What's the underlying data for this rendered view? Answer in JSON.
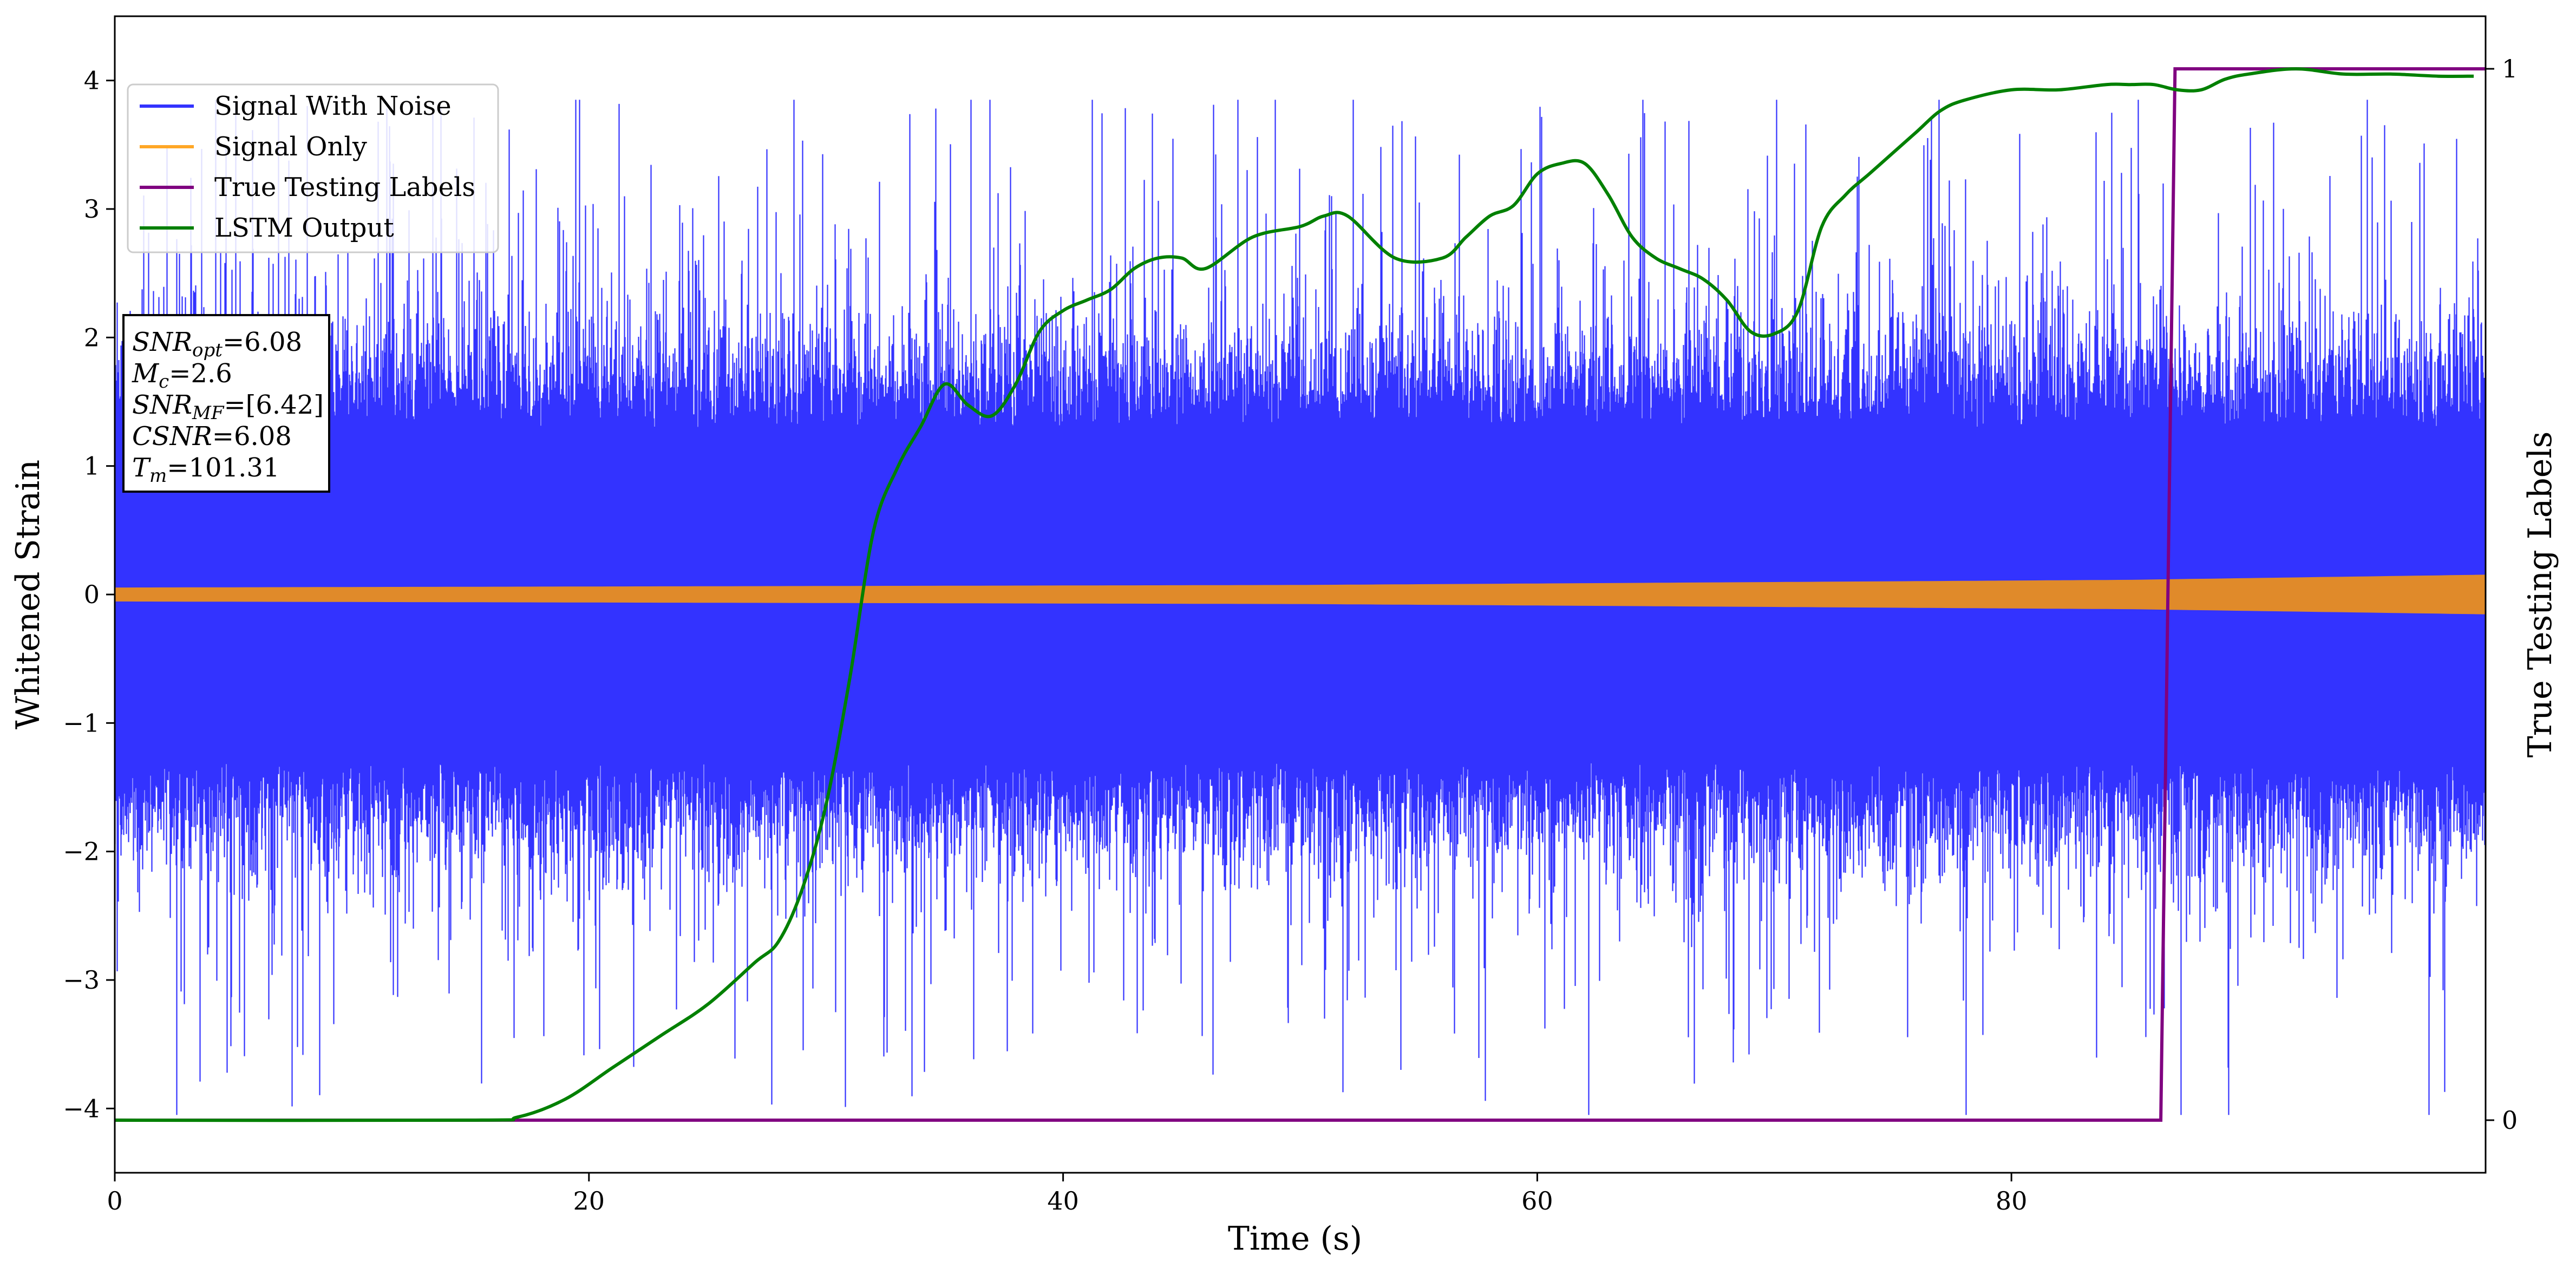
{
  "chart_data": {
    "type": "line",
    "title": "",
    "xlabel": "Time (s)",
    "ylabel": "Whitened Strain",
    "y2label": "True Testing Labels",
    "xlim": [
      0,
      100
    ],
    "ylim": [
      -4.5,
      4.5
    ],
    "y2lim": [
      -0.05,
      1.05
    ],
    "xticks": [
      0,
      20,
      40,
      60,
      80
    ],
    "xtick_labels": [
      "0",
      "20",
      "40",
      "60",
      "80"
    ],
    "yticks": [
      -4,
      -3,
      -2,
      -1,
      0,
      1,
      2,
      3,
      4
    ],
    "ytick_labels": [
      "−4",
      "−3",
      "−2",
      "−1",
      "0",
      "1",
      "2",
      "3",
      "4"
    ],
    "y2ticks": [
      0,
      1
    ],
    "y2tick_labels": [
      "0",
      "1"
    ],
    "grid": false,
    "legend_position": "top-left",
    "legend": [
      {
        "label": "Signal With Noise",
        "color": "#3333ff"
      },
      {
        "label": "Signal Only",
        "color": "#ffa726"
      },
      {
        "label": "True Testing Labels",
        "color": "#800080"
      },
      {
        "label": "LSTM Output",
        "color": "#008000"
      }
    ],
    "series": [
      {
        "name": "Signal With Noise",
        "axis": "left",
        "color": "#3333ff",
        "kind": "dense-noise",
        "core_band": [
          -1.3,
          1.3
        ],
        "typical_extremes": [
          -2.5,
          2.7
        ],
        "max_spike": 3.85,
        "min_spike": -4.05
      },
      {
        "name": "Signal Only",
        "axis": "left",
        "color": "#e08a2a",
        "kind": "chirp-envelope",
        "x": [
          0,
          50,
          85,
          100
        ],
        "amplitude": [
          0.05,
          0.07,
          0.11,
          0.15
        ]
      },
      {
        "name": "True Testing Labels",
        "axis": "right",
        "color": "#800080",
        "x": [
          0,
          86.3,
          86.9,
          100
        ],
        "y": [
          0,
          0,
          1,
          1
        ]
      },
      {
        "name": "LSTM Output",
        "axis": "right",
        "color": "#008000",
        "x": [
          0,
          15,
          17,
          19,
          21,
          23,
          25,
          27,
          28,
          29,
          30,
          31,
          32,
          33,
          34,
          35,
          36,
          37,
          38,
          39,
          40,
          41,
          42,
          43,
          44,
          45,
          46,
          48,
          50,
          51,
          52,
          54,
          56,
          57,
          58,
          59,
          60,
          61,
          62,
          63,
          64,
          65,
          66,
          67,
          68,
          69,
          70,
          71,
          72,
          73,
          74,
          75,
          76,
          77,
          78,
          80,
          82,
          84,
          85,
          86,
          87,
          88,
          89,
          90,
          92,
          94,
          96,
          98,
          99.5
        ],
        "y": [
          0.0,
          0.0,
          0.003,
          0.02,
          0.05,
          0.08,
          0.11,
          0.15,
          0.17,
          0.22,
          0.3,
          0.42,
          0.56,
          0.62,
          0.66,
          0.7,
          0.68,
          0.67,
          0.7,
          0.75,
          0.77,
          0.78,
          0.79,
          0.81,
          0.82,
          0.82,
          0.81,
          0.84,
          0.85,
          0.86,
          0.86,
          0.82,
          0.82,
          0.84,
          0.86,
          0.87,
          0.9,
          0.91,
          0.91,
          0.88,
          0.84,
          0.82,
          0.81,
          0.8,
          0.78,
          0.75,
          0.748,
          0.77,
          0.85,
          0.88,
          0.9,
          0.92,
          0.94,
          0.96,
          0.97,
          0.98,
          0.98,
          0.985,
          0.985,
          0.985,
          0.98,
          0.98,
          0.99,
          0.995,
          1.0,
          0.995,
          0.995,
          0.993,
          0.993
        ]
      }
    ]
  },
  "annotation": {
    "lines": [
      {
        "italic": "SNR",
        "sub": "opt",
        "rest": "=6.08"
      },
      {
        "italic": "M",
        "sub": "c",
        "rest": "=2.6"
      },
      {
        "italic": "SNR",
        "sub": "MF",
        "rest": "=[6.42]"
      },
      {
        "italic": "CSNR",
        "sub": "",
        "rest": "=6.08"
      },
      {
        "italic": "T",
        "sub": "m",
        "rest": "=101.31"
      }
    ]
  }
}
